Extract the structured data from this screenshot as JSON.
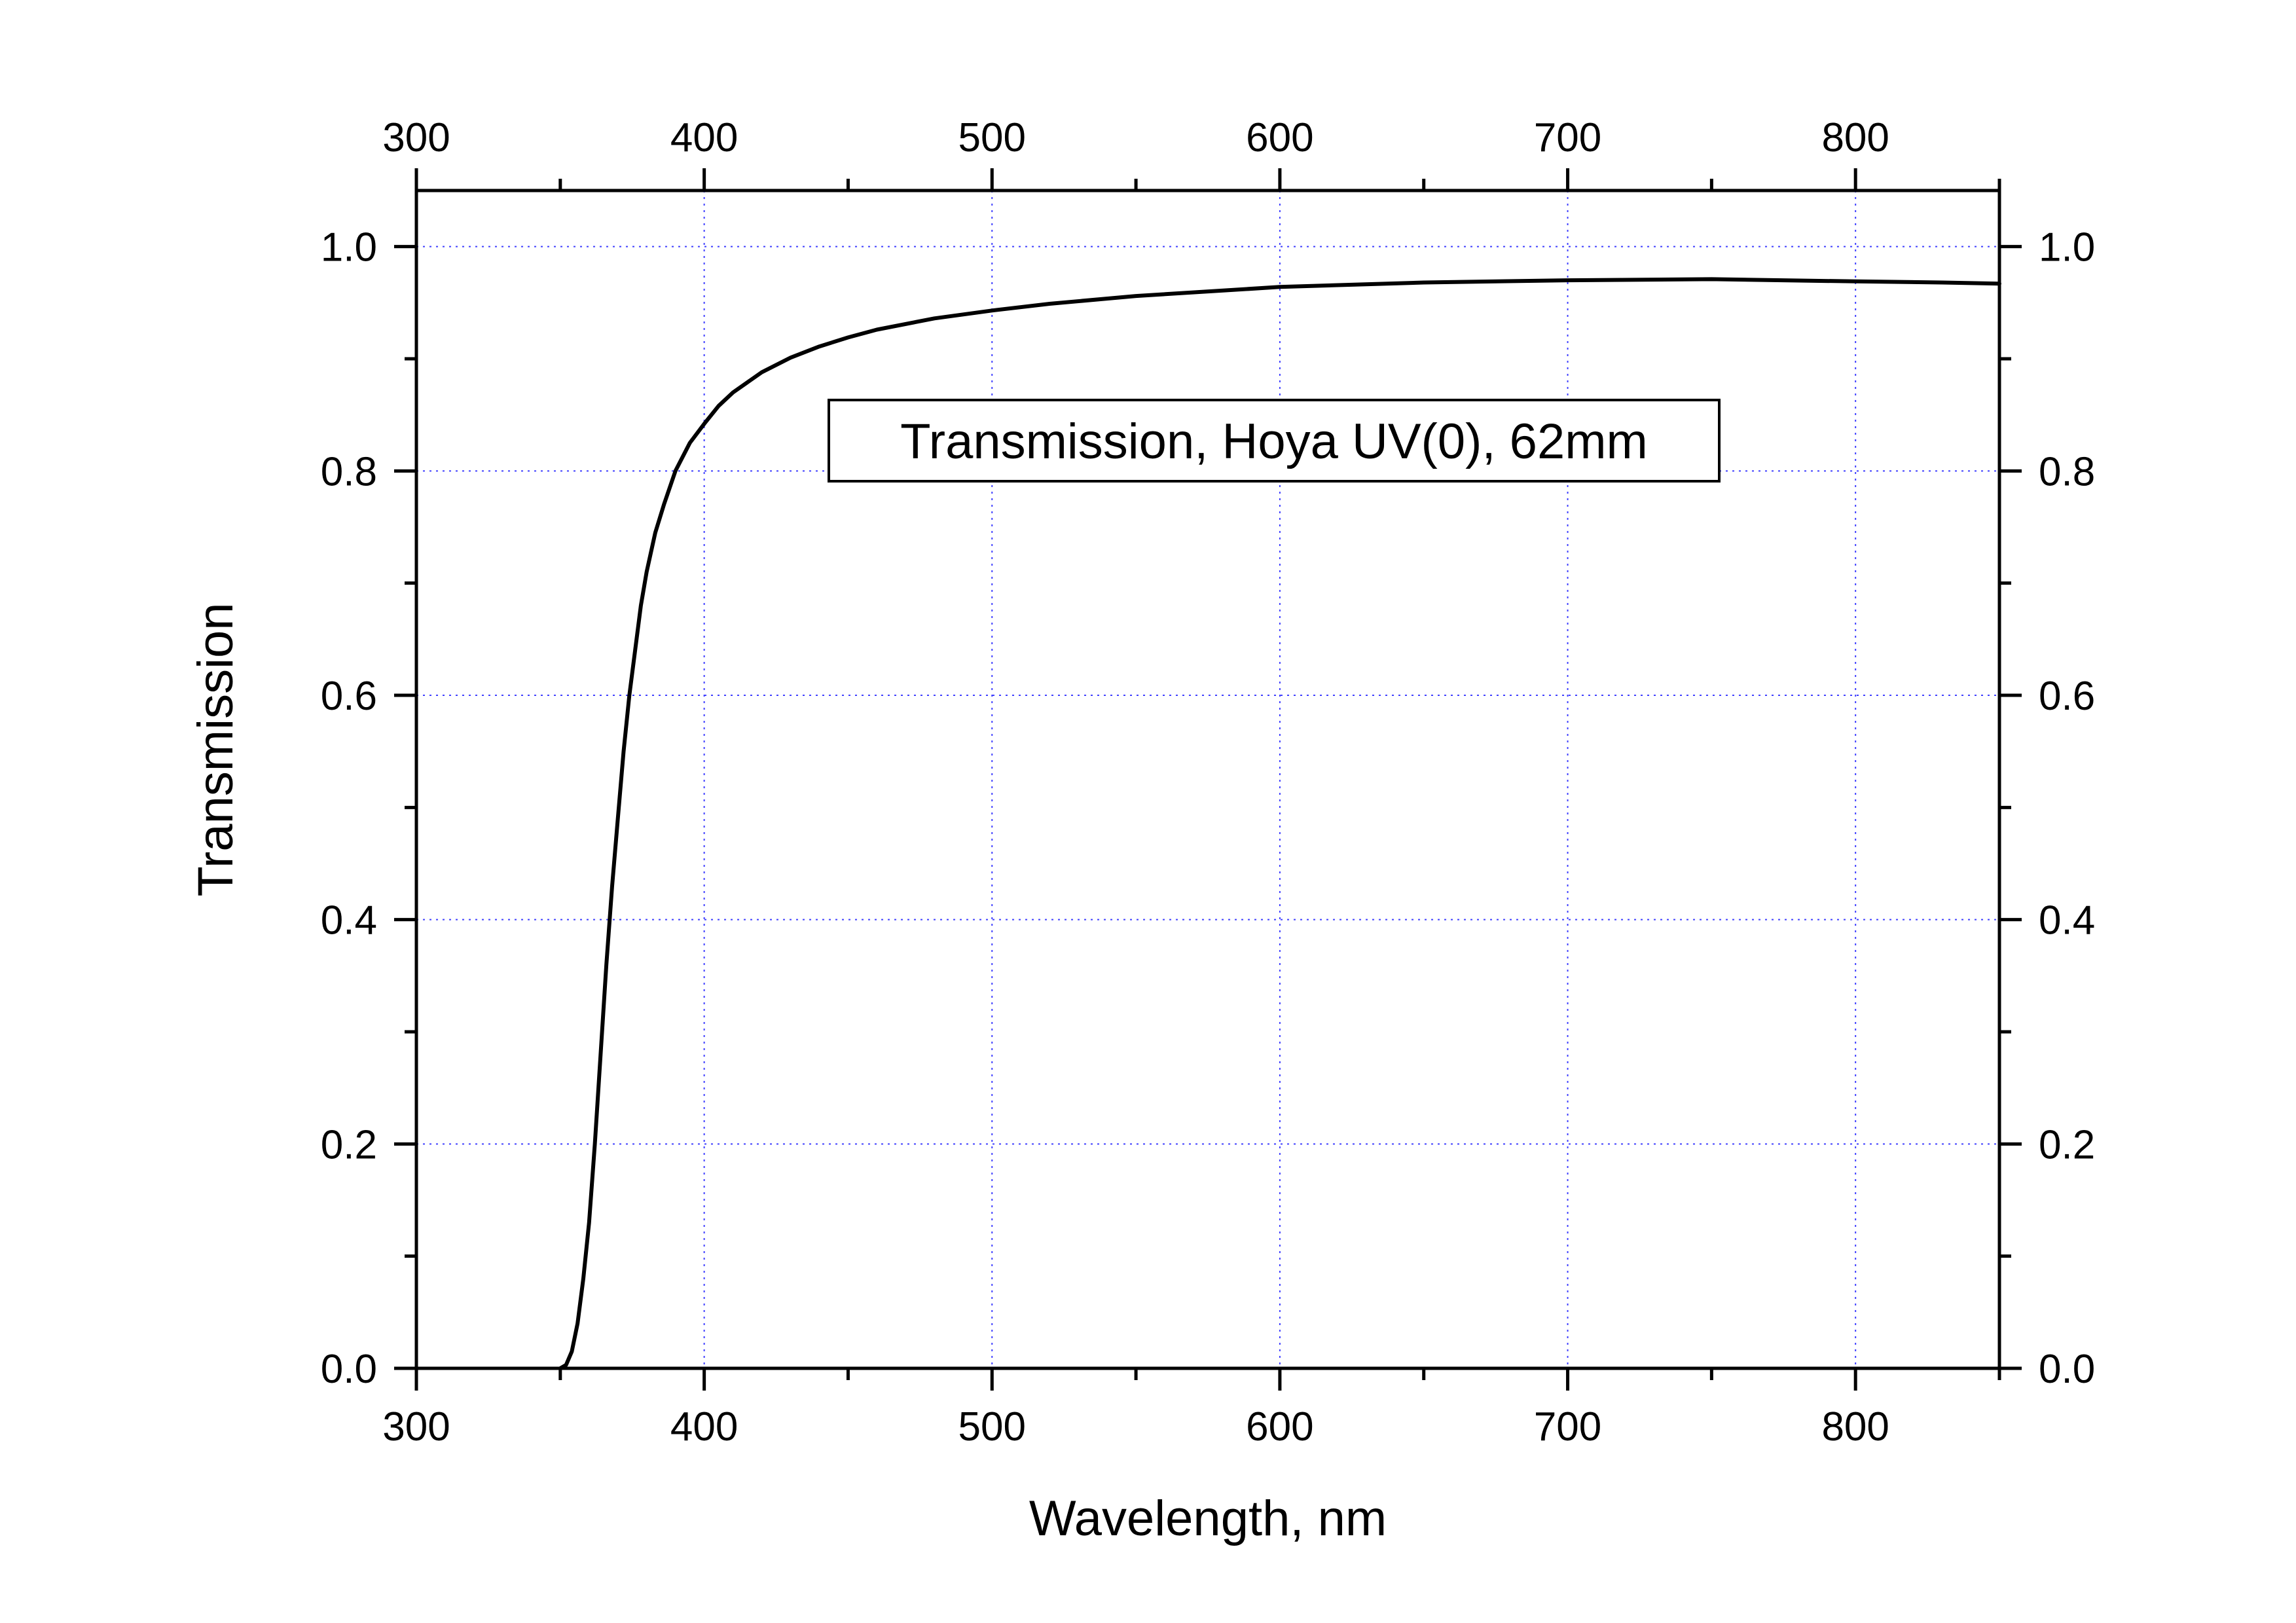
{
  "chart_data": {
    "type": "line",
    "title": "",
    "xlabel": "Wavelength, nm",
    "ylabel": "Transmission",
    "xlim": [
      300,
      850
    ],
    "ylim": [
      0.0,
      1.05
    ],
    "x_ticks": [
      300,
      400,
      500,
      600,
      700,
      800
    ],
    "x_tick_labels": [
      "300",
      "400",
      "500",
      "600",
      "700",
      "800"
    ],
    "y_ticks": [
      0.0,
      0.2,
      0.4,
      0.6,
      0.8,
      1.0
    ],
    "y_tick_labels": [
      "0.0",
      "0.2",
      "0.4",
      "0.6",
      "0.8",
      "1.0"
    ],
    "top_axis_tick_labels": [
      "300",
      "400",
      "500",
      "600",
      "700",
      "800"
    ],
    "right_axis_tick_labels": [
      "0.0",
      "0.2",
      "0.4",
      "0.6",
      "0.8",
      "1.0"
    ],
    "grid": true,
    "grid_color": "#4040ff",
    "line_color": "#000000",
    "annotation": "Transmission, Hoya UV(0), 62mm",
    "series": [
      {
        "x": [
          350,
          352,
          354,
          356,
          358,
          360,
          362,
          364,
          366,
          368,
          370,
          372,
          374,
          376,
          378,
          380,
          383,
          386,
          390,
          395,
          400,
          405,
          410,
          420,
          430,
          440,
          450,
          460,
          480,
          500,
          520,
          550,
          600,
          650,
          700,
          750,
          800,
          830,
          850
        ],
        "y": [
          0.0,
          0.003,
          0.015,
          0.04,
          0.08,
          0.13,
          0.2,
          0.28,
          0.36,
          0.43,
          0.49,
          0.55,
          0.6,
          0.64,
          0.68,
          0.71,
          0.745,
          0.77,
          0.8,
          0.825,
          0.842,
          0.858,
          0.87,
          0.888,
          0.901,
          0.911,
          0.919,
          0.926,
          0.936,
          0.943,
          0.949,
          0.956,
          0.964,
          0.968,
          0.97,
          0.971,
          0.969,
          0.968,
          0.967
        ]
      }
    ]
  }
}
